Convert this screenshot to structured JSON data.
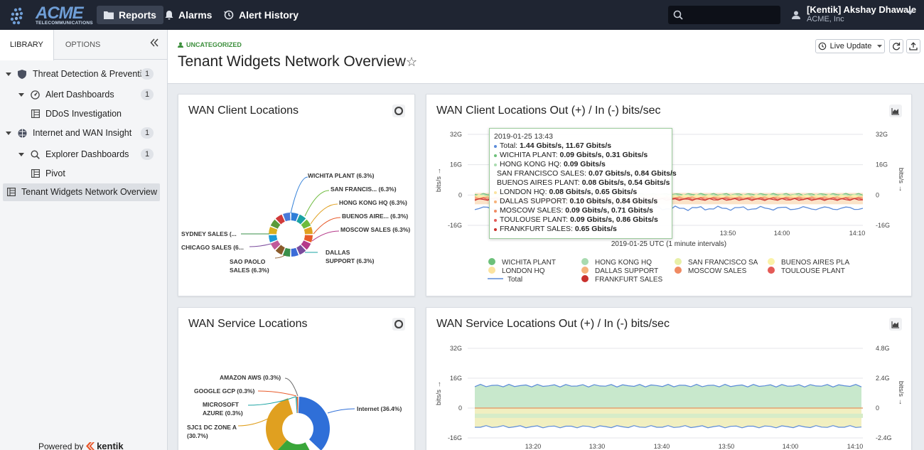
{
  "topbar": {
    "logo_word": "ACME",
    "logo_sub": "TELECOMMUNICATIONS",
    "nav": [
      {
        "label": "Reports",
        "icon": "folder-icon"
      },
      {
        "label": "Alarms",
        "icon": "bell-icon"
      },
      {
        "label": "Alert History",
        "icon": "history-icon"
      }
    ],
    "user_name": "[Kentik] Akshay Dhawale",
    "user_org": "ACME, Inc"
  },
  "sidebar": {
    "tabs": [
      "LIBRARY",
      "OPTIONS"
    ],
    "items": [
      {
        "label": "Threat Detection & Preventi...",
        "count": "1"
      },
      {
        "label": "Alert Dashboards",
        "count": "1"
      },
      {
        "label": "DDoS Investigation"
      },
      {
        "label": "Internet and WAN Insight",
        "count": "1"
      },
      {
        "label": "Explorer Dashboards",
        "count": "1"
      },
      {
        "label": "Pivot"
      },
      {
        "label": "Tenant Widgets Network Overview"
      }
    ],
    "powered_by": "Powered by",
    "powered_brand": "kentik"
  },
  "header": {
    "category": "UNCATEGORIZED",
    "title": "Tenant Widgets Network Overview",
    "live_update": "Live Update"
  },
  "panels": {
    "p1_title": "WAN Client Locations",
    "p2_title": "WAN Client Locations Out (+) / In (-) bits/sec",
    "p3_title": "WAN Service Locations",
    "p4_title": "WAN Service Locations Out (+) / In (-) bits/sec"
  },
  "colors": {
    "green": "#3aa63a",
    "accent": "#f5a623",
    "navbar": "#1f2532"
  },
  "chart_data": [
    {
      "type": "pie",
      "title": "WAN Client Locations",
      "labels": [
        "WICHITA PLANT (6.3%)",
        "SAN FRANCIS... (6.3%)",
        "HONG KONG HQ (6.3%)",
        "BUENOS AIRE... (6.3%)",
        "MOSCOW SALES (6.3%)",
        "DALLAS SUPPORT (6.3%)",
        "SAO PAOLO SALES (6.3%)",
        "CHICAGO SALES (6...",
        "SYDNEY SALES (..."
      ],
      "values": [
        6.3,
        6.3,
        6.3,
        6.3,
        6.3,
        6.3,
        6.3,
        6.3,
        6.3
      ]
    },
    {
      "type": "line",
      "title": "WAN Client Locations Out (+) / In (-) bits/sec",
      "xlabel": "2019-01-25 UTC (1 minute intervals)",
      "ylabel": "bits/s",
      "y_ticks_left": [
        "32G",
        "16G",
        "0",
        "-16G"
      ],
      "y_ticks_right": [
        "32G",
        "16G",
        "0",
        "-16G"
      ],
      "x_ticks": [
        "13:50",
        "14:00",
        "14:10"
      ],
      "ylim": [
        -16,
        32
      ],
      "tooltip": {
        "time": "2019-01-25 13:43",
        "rows": [
          {
            "name": "Total:",
            "value": "1.44 Gbits/s, 11.67 Gbits/s",
            "color": "#5b8bd9"
          },
          {
            "name": "WICHITA PLANT:",
            "value": "0.09 Gbits/s, 0.31 Gbits/s",
            "color": "#6cc07a"
          },
          {
            "name": "HONG KONG HQ:",
            "value": "0.09 Gbits/s",
            "color": "#a9dbb0"
          },
          {
            "name": "SAN FRANCISCO SALES:",
            "value": "0.07 Gbits/s, 0.84 Gbits/s",
            "color": "#e8f0a8"
          },
          {
            "name": "BUENOS AIRES PLANT:",
            "value": "0.08 Gbits/s, 0.54 Gbits/s",
            "color": "#fbf2a8"
          },
          {
            "name": "LONDON HQ:",
            "value": "0.08 Gbits/s, 0.65 Gbits/s",
            "color": "#fbe3a0"
          },
          {
            "name": "DALLAS SUPPORT:",
            "value": "0.10 Gbits/s, 0.84 Gbits/s",
            "color": "#f6b27a"
          },
          {
            "name": "MOSCOW SALES:",
            "value": "0.09 Gbits/s, 0.71 Gbits/s",
            "color": "#f08a62"
          },
          {
            "name": "TOULOUSE PLANT:",
            "value": "0.09 Gbits/s, 0.86 Gbits/s",
            "color": "#e45a56"
          },
          {
            "name": "FRANKFURT SALES:",
            "value": "0.65 Gbits/s",
            "color": "#c9302c"
          }
        ]
      },
      "series": [
        {
          "name": "WICHITA PLANT",
          "color": "#6cc07a"
        },
        {
          "name": "HONG KONG HQ",
          "color": "#a9dbb0"
        },
        {
          "name": "SAN FRANCISCO SA",
          "color": "#e8f0a8"
        },
        {
          "name": "BUENOS AIRES PLA",
          "color": "#fbf2a8"
        },
        {
          "name": "LONDON HQ",
          "color": "#fbe3a0"
        },
        {
          "name": "DALLAS SUPPORT",
          "color": "#f6b27a"
        },
        {
          "name": "MOSCOW SALES",
          "color": "#f08a62"
        },
        {
          "name": "TOULOUSE PLANT",
          "color": "#e45a56"
        },
        {
          "name": "FRANKFURT SALES",
          "color": "#c9302c"
        },
        {
          "name": "Total",
          "color": "#5b8bd9"
        }
      ]
    },
    {
      "type": "pie",
      "title": "WAN Service Locations",
      "labels": [
        "Internet (36.4%)",
        "SJC1 DC ZONE A (30.7%)",
        "MICROSOFT AZURE (0.3%)",
        "GOOGLE GCP (0.3%)",
        "AMAZON AWS (0.3%)"
      ],
      "values": [
        36.4,
        30.7,
        0.3,
        0.3,
        0.3
      ]
    },
    {
      "type": "area",
      "title": "WAN Service Locations Out (+) / In (-) bits/sec",
      "ylabel": "bits/s",
      "y_ticks_left": [
        "32G",
        "16G",
        "0",
        "-16G"
      ],
      "y_ticks_right": [
        "4.8G",
        "2.4G",
        "0",
        "-2.4G"
      ],
      "x_ticks": [
        "13:20",
        "13:30",
        "13:40",
        "13:50",
        "14:00",
        "14:10"
      ]
    }
  ]
}
